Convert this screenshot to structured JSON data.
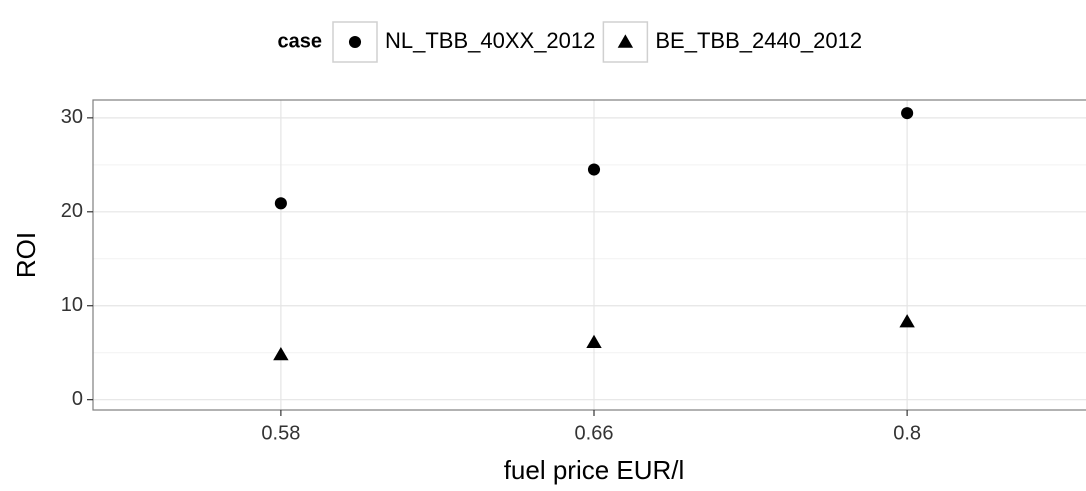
{
  "chart_data": {
    "type": "scatter",
    "x_label": "fuel price EUR/l",
    "y_label": "ROI",
    "legend_title": "case",
    "legend_position": "top",
    "categories": [
      "0.58",
      "0.66",
      "0.8"
    ],
    "series": [
      {
        "name": "NL_TBB_40XX_2012",
        "color": "#000000",
        "shape": "circle",
        "values": [
          20.9,
          24.5,
          30.5
        ]
      },
      {
        "name": "BE_TBB_2440_2012",
        "color": "#000000",
        "shape": "triangle",
        "values": [
          4.8,
          6.1,
          8.3
        ]
      }
    ],
    "ylim": [
      -1.1,
      31.9
    ],
    "yticks": [
      0,
      10,
      20,
      30
    ],
    "grid": true
  }
}
